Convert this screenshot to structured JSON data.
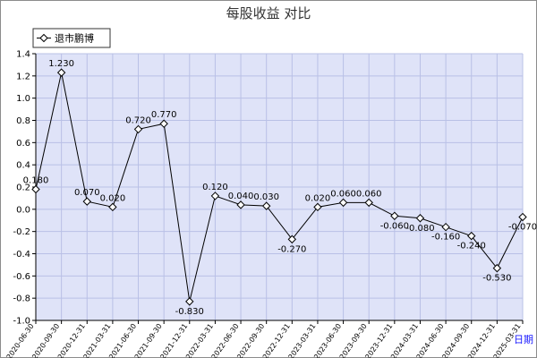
{
  "chart_data": {
    "type": "line",
    "title": "每股收益  对比",
    "legend_position": "top-left",
    "grid": true,
    "xlabel": "日期",
    "ylim": [
      -1.0,
      1.4
    ],
    "yticks": [
      -1.0,
      -0.8,
      -0.6,
      -0.4,
      -0.2,
      0.0,
      0.2,
      0.4,
      0.6,
      0.8,
      1.0,
      1.2,
      1.4
    ],
    "yticks_labels": [
      "-1.0",
      "-0.8",
      "-0.6",
      "-0.4",
      "-0.2",
      "0.0",
      "0.2",
      "0.4",
      "0.6",
      "0.8",
      "1.0",
      "1.2",
      "1.4"
    ],
    "categories": [
      "2020-06-30",
      "2020-09-30",
      "2020-12-31",
      "2021-03-31",
      "2021-06-30",
      "2021-09-30",
      "2021-12-31",
      "2022-03-31",
      "2022-06-30",
      "2022-09-30",
      "2022-12-31",
      "2023-03-31",
      "2023-06-30",
      "2023-09-30",
      "2023-12-31",
      "2024-03-31",
      "2024-06-30",
      "2024-09-30",
      "2024-12-31",
      "2025-03-31"
    ],
    "series": [
      {
        "name": "退市鹏博",
        "color": "#000000",
        "values": [
          0.18,
          1.23,
          0.07,
          0.02,
          0.72,
          0.77,
          -0.83,
          0.12,
          0.04,
          0.03,
          -0.27,
          0.02,
          0.06,
          0.06,
          -0.06,
          -0.08,
          -0.16,
          -0.24,
          -0.53,
          -0.07
        ],
        "labels": [
          "0.180",
          "1.230",
          "0.070",
          "0.020",
          "0.720",
          "0.770",
          "-0.830",
          "0.120",
          "0.040",
          "0.030",
          "-0.270",
          "0.020",
          "0.060",
          "0.060",
          "-0.060",
          "-0.080",
          "-0.160",
          "-0.240",
          "-0.530",
          "-0.070"
        ]
      }
    ],
    "colors": {
      "plot_bg": "#dfe3f8",
      "grid": "#b9c0e6",
      "frame": "#8c8c8c",
      "line": "#000000",
      "unit_label": "#1a1aff"
    }
  }
}
